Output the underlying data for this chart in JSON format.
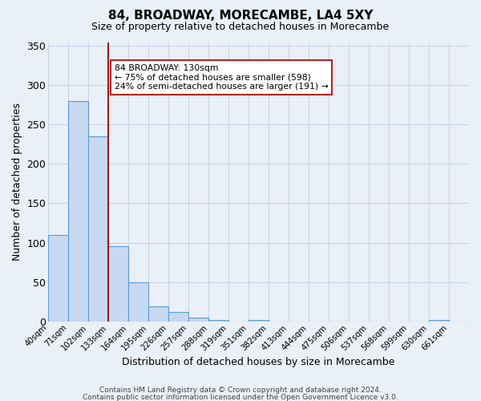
{
  "title": "84, BROADWAY, MORECAMBE, LA4 5XY",
  "subtitle": "Size of property relative to detached houses in Morecambe",
  "xlabel": "Distribution of detached houses by size in Morecambe",
  "ylabel": "Number of detached properties",
  "bin_labels": [
    "40sqm",
    "71sqm",
    "102sqm",
    "133sqm",
    "164sqm",
    "195sqm",
    "226sqm",
    "257sqm",
    "288sqm",
    "319sqm",
    "351sqm",
    "382sqm",
    "413sqm",
    "444sqm",
    "475sqm",
    "506sqm",
    "537sqm",
    "568sqm",
    "599sqm",
    "630sqm",
    "661sqm"
  ],
  "bar_values": [
    110,
    280,
    235,
    95,
    50,
    19,
    12,
    5,
    2,
    0,
    2,
    0,
    0,
    0,
    0,
    0,
    0,
    0,
    0,
    2,
    0
  ],
  "bar_color": "#c6d9f1",
  "bar_edge_color": "#5b9bd5",
  "grid_color": "#c8d4e8",
  "bg_color": "#eaf0f8",
  "property_bin": 3,
  "vline_color": "#9b1b1b",
  "annotation_text": "84 BROADWAY: 130sqm\n← 75% of detached houses are smaller (598)\n24% of semi-detached houses are larger (191) →",
  "annotation_box_color": "#ffffff",
  "annotation_box_edge": "#bb2222",
  "ylim": [
    0,
    355
  ],
  "yticks": [
    0,
    50,
    100,
    150,
    200,
    250,
    300,
    350
  ],
  "footer1": "Contains HM Land Registry data © Crown copyright and database right 2024.",
  "footer2": "Contains public sector information licensed under the Open Government Licence v3.0."
}
